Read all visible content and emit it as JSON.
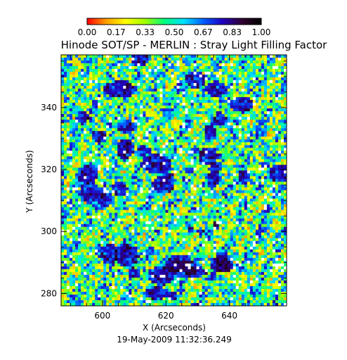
{
  "chart_data": {
    "type": "heatmap",
    "title": "Hinode SOT/SP - MERLIN : Stray Light Filling Factor",
    "xlabel": "X (Arcseconds)",
    "ylabel": "Y (Arcseconds)",
    "xlim": [
      587,
      658
    ],
    "ylim": [
      276,
      357
    ],
    "xticks": [
      600,
      620,
      640
    ],
    "yticks": [
      280,
      300,
      320,
      340
    ],
    "colorbar": {
      "range": [
        0.0,
        1.0
      ],
      "ticks": [
        "0.00",
        "0.17",
        "0.33",
        "0.50",
        "0.67",
        "0.83",
        "1.00"
      ],
      "placement": "top",
      "colormap": [
        "#ff0000",
        "#ffa000",
        "#ffff00",
        "#a0ff00",
        "#00ff80",
        "#00e0ff",
        "#0060ff",
        "#2000c0",
        "#300030",
        "#000000"
      ]
    },
    "typical_values": {
      "background_mean": 0.45,
      "high_value_patches": 0.9
    },
    "timestamp": "19-May-2009 11:32:36.249"
  },
  "colors": {
    "frame": "#000000",
    "background": "#ffffff"
  }
}
